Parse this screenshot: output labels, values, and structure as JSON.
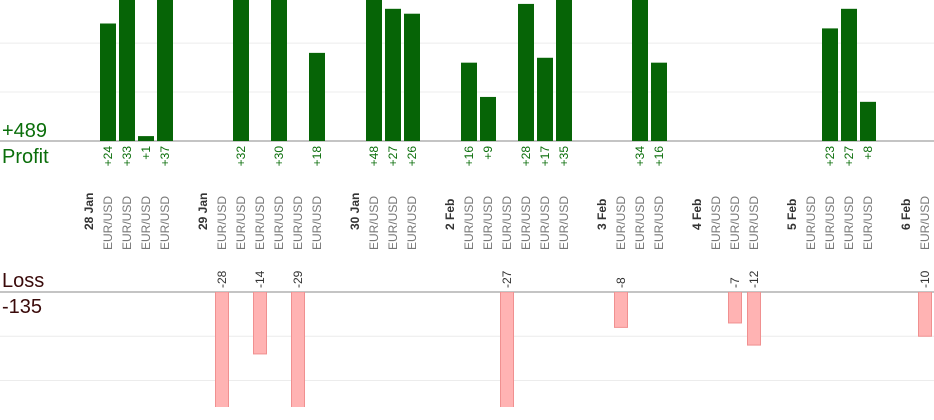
{
  "chart_data": {
    "type": "bar",
    "profit_total": {
      "value": 489,
      "label": "+489"
    },
    "profit_label": "Profit",
    "loss_label": "Loss",
    "loss_total": -135,
    "profit_color": "#066406",
    "loss_color": "#ffb3b3",
    "ylim": [
      0,
      28.8
    ],
    "yticks": [
      0,
      10,
      20
    ],
    "loss_ylim": [
      -26,
      0
    ],
    "loss_yticks": [
      0,
      -10,
      -20
    ],
    "grid": true,
    "days": [
      {
        "label": "28 Jan",
        "trades": [
          {
            "instrument": "EUR/USD",
            "value": 24,
            "value_label": "+24"
          },
          {
            "instrument": "EUR/USD",
            "value": 33,
            "value_label": "+33"
          },
          {
            "instrument": "EUR/USD",
            "value": 1,
            "value_label": "+1"
          },
          {
            "instrument": "EUR/USD",
            "value": 37,
            "value_label": "+37"
          }
        ]
      },
      {
        "label": "29 Jan",
        "trades": [
          {
            "instrument": "EUR/USD",
            "value": -28
          },
          {
            "instrument": "EUR/USD",
            "value": 32,
            "value_label": "+32"
          },
          {
            "instrument": "EUR/USD",
            "value": -14
          },
          {
            "instrument": "EUR/USD",
            "value": 30,
            "value_label": "+30"
          },
          {
            "instrument": "EUR/USD",
            "value": -29
          },
          {
            "instrument": "EUR/USD",
            "value": 18,
            "value_label": "+18"
          }
        ]
      },
      {
        "label": "30 Jan",
        "trades": [
          {
            "instrument": "EUR/USD",
            "value": 48,
            "value_label": "+48"
          },
          {
            "instrument": "EUR/USD",
            "value": 27,
            "value_label": "+27"
          },
          {
            "instrument": "EUR/USD",
            "value": 26,
            "value_label": "+26"
          }
        ]
      },
      {
        "label": "2 Feb",
        "trades": [
          {
            "instrument": "EUR/USD",
            "value": 16,
            "value_label": "+16"
          },
          {
            "instrument": "EUR/USD",
            "value": 9,
            "value_label": "+9"
          },
          {
            "instrument": "EUR/USD",
            "value": -27
          },
          {
            "instrument": "EUR/USD",
            "value": 28,
            "value_label": "+28"
          },
          {
            "instrument": "EUR/USD",
            "value": 17,
            "value_label": "+17"
          },
          {
            "instrument": "EUR/USD",
            "value": 35,
            "value_label": "+35"
          }
        ]
      },
      {
        "label": "3 Feb",
        "trades": [
          {
            "instrument": "EUR/USD",
            "value": -8
          },
          {
            "instrument": "EUR/USD",
            "value": 34,
            "value_label": "+34"
          },
          {
            "instrument": "EUR/USD",
            "value": 16,
            "value_label": "+16"
          }
        ]
      },
      {
        "label": "4 Feb",
        "trades": [
          {
            "instrument": "EUR/USD",
            "value": null
          },
          {
            "instrument": "EUR/USD",
            "value": -7
          },
          {
            "instrument": "EUR/USD",
            "value": -12
          }
        ]
      },
      {
        "label": "5 Feb",
        "trades": [
          {
            "instrument": "EUR/USD",
            "value": null
          },
          {
            "instrument": "EUR/USD",
            "value": 23,
            "value_label": "+23"
          },
          {
            "instrument": "EUR/USD",
            "value": 27,
            "value_label": "+27"
          },
          {
            "instrument": "EUR/USD",
            "value": 8,
            "value_label": "+8"
          }
        ]
      },
      {
        "label": "6 Feb",
        "trades": [
          {
            "instrument": "EUR/USD",
            "value": -10
          }
        ]
      }
    ]
  }
}
